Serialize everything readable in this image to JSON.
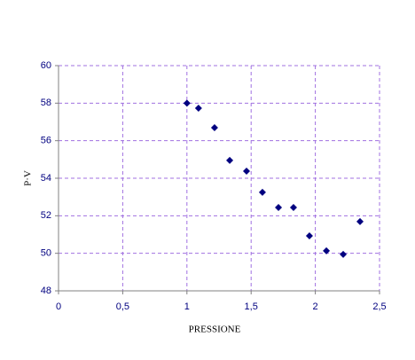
{
  "chart_data": {
    "type": "scatter",
    "x_label": "PRESSIONE",
    "y_label": "P·V",
    "x": [
      1.0,
      1.09,
      1.215,
      1.333,
      1.464,
      1.588,
      1.713,
      1.83,
      1.954,
      2.086,
      2.217,
      2.348
    ],
    "values": [
      58.0,
      57.73,
      56.69,
      54.95,
      54.38,
      53.25,
      52.44,
      52.44,
      50.93,
      50.13,
      49.94,
      51.69
    ],
    "color": "#000080",
    "xlim": [
      0,
      2.5
    ],
    "xticks": [
      0,
      {
        "value": 0.5,
        "label": "0,5"
      },
      1,
      {
        "value": 1.5,
        "label": "1,5"
      },
      2,
      {
        "value": 2.5,
        "label": "2,5"
      }
    ],
    "ylim": [
      48,
      60
    ],
    "yticks": [
      48,
      50,
      52,
      54,
      56,
      58,
      60
    ],
    "grid": true
  }
}
